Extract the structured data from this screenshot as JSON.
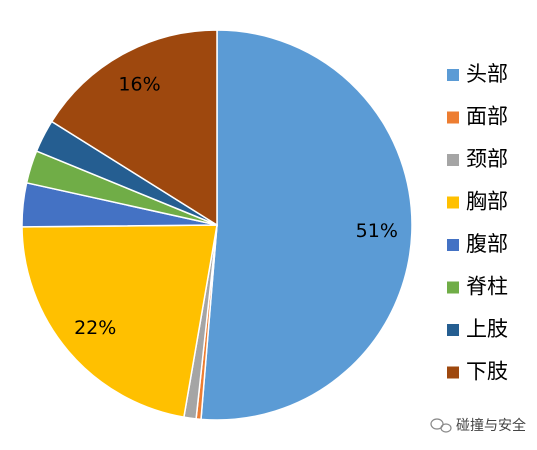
{
  "chart_data": {
    "type": "pie",
    "categories": [
      "头部",
      "面部",
      "颈部",
      "胸部",
      "腹部",
      "脊柱",
      "上肢",
      "下肢"
    ],
    "values": [
      51,
      0.4,
      1,
      22,
      3.6,
      2.7,
      2.7,
      16
    ],
    "value_labels": [
      "51%",
      null,
      null,
      "22%",
      null,
      null,
      null,
      "16%"
    ],
    "colors": [
      "#5B9BD5",
      "#ED7D31",
      "#A5A5A5",
      "#FFC000",
      "#4472C4",
      "#70AD47",
      "#255E91",
      "#9E480E"
    ],
    "legend": "right"
  },
  "watermark": "碰撞与安全"
}
